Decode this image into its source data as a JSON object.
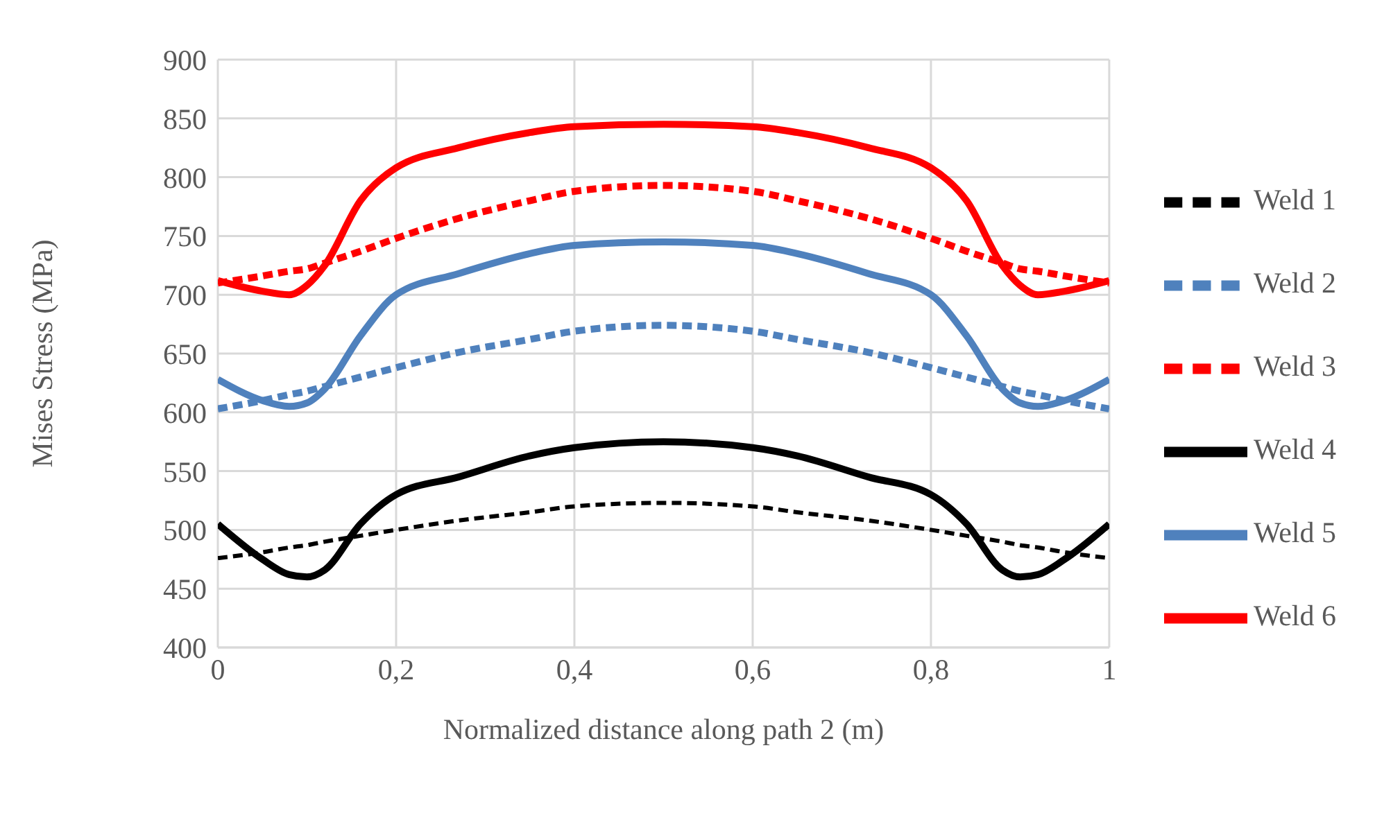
{
  "chart_data": {
    "type": "line",
    "xlabel": "Normalized distance along path 2 (m)",
    "ylabel": "Mises Stress (MPa)",
    "x": [
      0,
      0.05,
      0.08,
      0.1,
      0.12,
      0.16,
      0.2,
      0.27,
      0.35,
      0.4,
      0.5,
      0.6,
      0.65,
      0.73,
      0.8,
      0.84,
      0.88,
      0.9,
      0.92,
      0.95,
      1
    ],
    "series": [
      {
        "name": "Weld 1",
        "color": "#000000",
        "line_style": "dashed",
        "values": [
          476,
          481,
          485,
          487,
          490,
          495,
          500,
          508,
          515,
          520,
          523,
          520,
          515,
          508,
          500,
          495,
          490,
          487,
          485,
          481,
          476
        ]
      },
      {
        "name": "Weld 2",
        "color": "#4f81bd",
        "line_style": "dashed",
        "values": [
          603,
          610,
          615,
          618,
          622,
          630,
          638,
          651,
          662,
          669,
          674,
          669,
          662,
          651,
          638,
          630,
          622,
          618,
          615,
          610,
          603
        ]
      },
      {
        "name": "Weld 3",
        "color": "#ff0000",
        "line_style": "dashed",
        "values": [
          710,
          716,
          720,
          722,
          727,
          737,
          748,
          765,
          780,
          788,
          793,
          788,
          780,
          765,
          748,
          737,
          727,
          722,
          720,
          716,
          710
        ]
      },
      {
        "name": "Weld 4",
        "color": "#000000",
        "line_style": "solid",
        "values": [
          505,
          475,
          462,
          460,
          466,
          505,
          530,
          545,
          563,
          570,
          575,
          570,
          563,
          545,
          530,
          505,
          466,
          460,
          462,
          475,
          505
        ]
      },
      {
        "name": "Weld 5",
        "color": "#4f81bd",
        "line_style": "solid",
        "values": [
          628,
          610,
          605,
          608,
          620,
          665,
          700,
          718,
          735,
          742,
          745,
          742,
          735,
          718,
          700,
          665,
          620,
          608,
          605,
          610,
          628
        ]
      },
      {
        "name": "Weld 6",
        "color": "#ff0000",
        "line_style": "solid",
        "values": [
          712,
          703,
          700,
          708,
          725,
          780,
          808,
          825,
          838,
          843,
          845,
          843,
          838,
          825,
          808,
          780,
          725,
          708,
          700,
          703,
          712
        ]
      }
    ],
    "xlim": [
      0,
      1
    ],
    "xticks": [
      0,
      {
        "value": 0.2,
        "label": "0,2"
      },
      {
        "value": 0.4,
        "label": "0,4"
      },
      {
        "value": 0.6,
        "label": "0,6"
      },
      {
        "value": 0.8,
        "label": "0,8"
      },
      1
    ],
    "ylim": [
      400,
      900
    ],
    "yticks": [
      400,
      450,
      500,
      550,
      600,
      650,
      700,
      750,
      800,
      850,
      900
    ],
    "grid": true,
    "legend": "right",
    "marker": "none"
  }
}
